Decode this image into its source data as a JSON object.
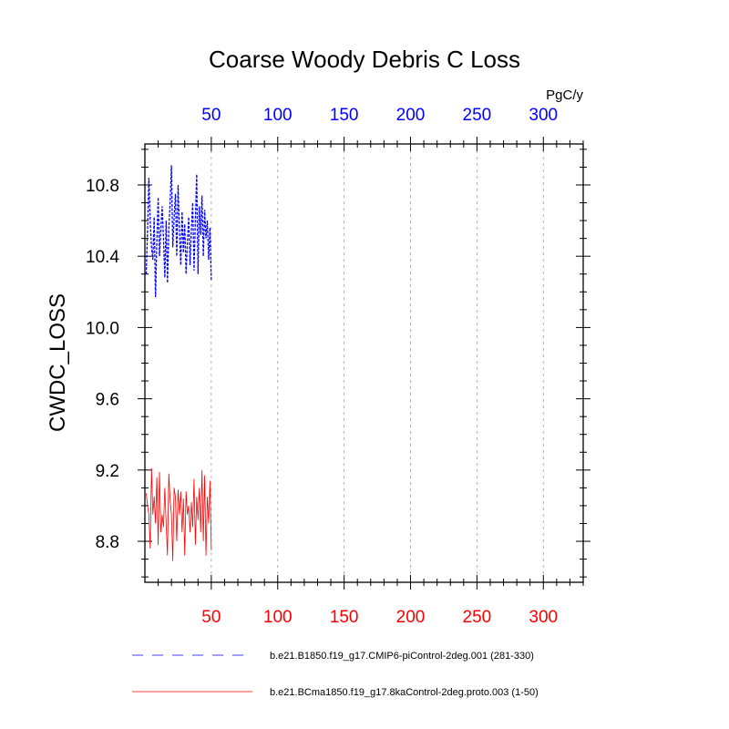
{
  "chart_data": {
    "type": "line",
    "title": "Coarse Woody Debris C Loss",
    "units": "PgC/y",
    "ylabel": "CWDC_LOSS",
    "xlabel": "",
    "xlim": [
      0,
      330
    ],
    "ylim": [
      8.57,
      11.03
    ],
    "x_ticks": [
      50,
      100,
      150,
      200,
      250,
      300
    ],
    "y_ticks": [
      8.8,
      9.2,
      9.6,
      10.0,
      10.4,
      10.8
    ],
    "grid": "vertical dashed at x ticks",
    "top_axis_color": "#0000ff",
    "bottom_axis_color": "#ff0000",
    "series": [
      {
        "name": "b.e21.B1850.f19_g17.CMIP6-piControl-2deg.001 (281-330)",
        "color": "#0000ff",
        "style": "dashed",
        "x": [
          1,
          2,
          3,
          4,
          5,
          6,
          7,
          8,
          9,
          10,
          11,
          12,
          13,
          14,
          15,
          16,
          17,
          18,
          19,
          20,
          21,
          22,
          23,
          24,
          25,
          26,
          27,
          28,
          29,
          30,
          31,
          32,
          33,
          34,
          35,
          36,
          37,
          38,
          39,
          40,
          41,
          42,
          43,
          44,
          45,
          46,
          47,
          48,
          49,
          50
        ],
        "values": [
          10.3,
          10.55,
          10.84,
          10.6,
          10.45,
          10.38,
          10.62,
          10.17,
          10.48,
          10.73,
          10.4,
          10.55,
          10.68,
          10.5,
          10.28,
          10.6,
          10.25,
          10.55,
          10.7,
          10.91,
          10.45,
          10.62,
          10.75,
          10.4,
          10.8,
          10.55,
          10.35,
          10.65,
          10.42,
          10.58,
          10.3,
          10.48,
          10.62,
          10.35,
          10.55,
          10.7,
          10.32,
          10.6,
          10.86,
          10.3,
          10.68,
          10.52,
          10.74,
          10.4,
          10.66,
          10.5,
          10.6,
          10.38,
          10.56,
          10.26
        ]
      },
      {
        "name": "b.e21.BCma1850.f19_g17.8kaControl-2deg.proto.003 (1-50)",
        "color": "#ff0000",
        "style": "solid",
        "x": [
          1,
          2,
          3,
          4,
          5,
          6,
          7,
          8,
          9,
          10,
          11,
          12,
          13,
          14,
          15,
          16,
          17,
          18,
          19,
          20,
          21,
          22,
          23,
          24,
          25,
          26,
          27,
          28,
          29,
          30,
          31,
          32,
          33,
          34,
          35,
          36,
          37,
          38,
          39,
          40,
          41,
          42,
          43,
          44,
          45,
          46,
          47,
          48,
          49,
          50
        ],
        "values": [
          9.07,
          9.0,
          8.95,
          8.76,
          9.21,
          8.95,
          9.05,
          8.9,
          9.16,
          8.78,
          9.19,
          8.85,
          8.95,
          8.88,
          9.1,
          8.9,
          8.72,
          9.18,
          9.03,
          8.95,
          8.69,
          9.1,
          9.05,
          8.8,
          9.09,
          8.95,
          9.08,
          8.85,
          9.04,
          8.72,
          9.08,
          8.95,
          9.0,
          8.85,
          9.02,
          8.88,
          9.15,
          8.78,
          9.05,
          8.92,
          9.1,
          8.85,
          9.2,
          8.8,
          9.17,
          8.72,
          9.05,
          8.9,
          9.14,
          8.75
        ]
      }
    ]
  }
}
